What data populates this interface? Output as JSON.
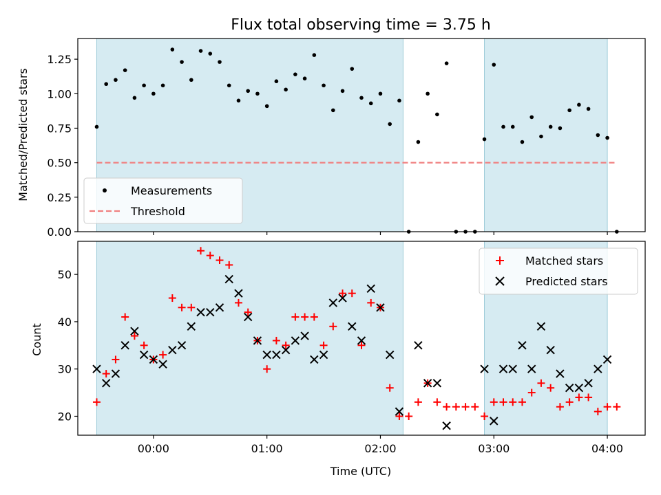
{
  "chart_data": [
    {
      "type": "scatter",
      "title": "Flux total observing time = 3.75 h",
      "xlabel": "",
      "ylabel": "Matched/Predicted stars",
      "ylim": [
        0,
        1.4
      ],
      "yticks": [
        "0.00",
        "0.25",
        "0.50",
        "0.75",
        "1.00",
        "1.25"
      ],
      "xlim": [
        "-00:40",
        "04:20"
      ],
      "shaded_intervals": [
        [
          "-00:30",
          "02:12"
        ],
        [
          "02:55",
          "04:00"
        ]
      ],
      "series": [
        {
          "name": "Measurements",
          "x": [
            "-00:30",
            "-00:25",
            "-00:20",
            "-00:15",
            "-00:10",
            "-00:05",
            "00:00",
            "00:05",
            "00:10",
            "00:15",
            "00:20",
            "00:25",
            "00:30",
            "00:35",
            "00:40",
            "00:45",
            "00:50",
            "00:55",
            "01:00",
            "01:05",
            "01:10",
            "01:15",
            "01:20",
            "01:25",
            "01:30",
            "01:35",
            "01:40",
            "01:45",
            "01:50",
            "01:55",
            "02:00",
            "02:05",
            "02:10",
            "02:15",
            "02:20",
            "02:25",
            "02:30",
            "02:35",
            "02:40",
            "02:45",
            "02:50",
            "02:55",
            "03:00",
            "03:05",
            "03:10",
            "03:15",
            "03:20",
            "03:25",
            "03:30",
            "03:35",
            "03:40",
            "03:45",
            "03:50",
            "03:55",
            "04:00",
            "04:05"
          ],
          "values": [
            0.76,
            1.07,
            1.1,
            1.17,
            0.97,
            1.06,
            1.0,
            1.06,
            1.32,
            1.23,
            1.1,
            1.31,
            1.29,
            1.23,
            1.06,
            0.95,
            1.02,
            1.0,
            0.91,
            1.09,
            1.03,
            1.14,
            1.11,
            1.28,
            1.06,
            0.88,
            1.02,
            1.18,
            0.97,
            0.93,
            1.0,
            0.78,
            0.95,
            0.0,
            0.65,
            1.0,
            0.85,
            1.22,
            0.0,
            0.0,
            0.0,
            0.67,
            1.21,
            0.76,
            0.76,
            0.65,
            0.83,
            0.69,
            0.76,
            0.75,
            0.88,
            0.92,
            0.89,
            0.7,
            0.68,
            0.0
          ]
        },
        {
          "name": "Threshold",
          "x": [
            "-00:30",
            "04:05"
          ],
          "values": [
            0.5,
            0.5
          ]
        }
      ],
      "legend": "lower-left",
      "colors": {
        "measurements": "#000000",
        "threshold": "#f08080",
        "shade": "#add8e6"
      }
    },
    {
      "type": "scatter",
      "xlabel": "Time (UTC)",
      "ylabel": "Count",
      "ylim": [
        16,
        57
      ],
      "yticks": [
        "20",
        "30",
        "40",
        "50"
      ],
      "xticks": [
        "00:00",
        "01:00",
        "02:00",
        "03:00",
        "04:00"
      ],
      "xlim": [
        "-00:40",
        "04:20"
      ],
      "shaded_intervals": [
        [
          "-00:30",
          "02:12"
        ],
        [
          "02:55",
          "04:00"
        ]
      ],
      "series": [
        {
          "name": "Matched stars",
          "x": [
            "-00:30",
            "-00:25",
            "-00:20",
            "-00:15",
            "-00:10",
            "-00:05",
            "00:00",
            "00:05",
            "00:10",
            "00:15",
            "00:20",
            "00:25",
            "00:30",
            "00:35",
            "00:40",
            "00:45",
            "00:50",
            "00:55",
            "01:00",
            "01:05",
            "01:10",
            "01:15",
            "01:20",
            "01:25",
            "01:30",
            "01:35",
            "01:40",
            "01:45",
            "01:50",
            "01:55",
            "02:00",
            "02:05",
            "02:10",
            "02:15",
            "02:20",
            "02:25",
            "02:30",
            "02:35",
            "02:40",
            "02:45",
            "02:50",
            "02:55",
            "03:00",
            "03:05",
            "03:10",
            "03:15",
            "03:20",
            "03:25",
            "03:30",
            "03:35",
            "03:40",
            "03:45",
            "03:50",
            "03:55",
            "04:00",
            "04:05"
          ],
          "values": [
            23,
            29,
            32,
            41,
            37,
            35,
            32,
            33,
            45,
            43,
            43,
            55,
            54,
            53,
            52,
            44,
            42,
            36,
            30,
            36,
            35,
            41,
            41,
            41,
            35,
            39,
            46,
            46,
            35,
            44,
            43,
            26,
            20,
            20,
            23,
            27,
            23,
            22,
            22,
            22,
            22,
            20,
            23,
            23,
            23,
            23,
            25,
            27,
            26,
            22,
            23,
            24,
            24,
            21,
            22,
            22
          ]
        },
        {
          "name": "Predicted stars",
          "x": [
            "-00:30",
            "-00:25",
            "-00:20",
            "-00:15",
            "-00:10",
            "-00:05",
            "00:00",
            "00:05",
            "00:10",
            "00:15",
            "00:20",
            "00:25",
            "00:30",
            "00:35",
            "00:40",
            "00:45",
            "00:50",
            "00:55",
            "01:00",
            "01:05",
            "01:10",
            "01:15",
            "01:20",
            "01:25",
            "01:30",
            "01:35",
            "01:40",
            "01:45",
            "01:50",
            "01:55",
            "02:00",
            "02:05",
            "02:10",
            "02:20",
            "02:25",
            "02:30",
            "02:35",
            "02:55",
            "03:00",
            "03:05",
            "03:10",
            "03:15",
            "03:20",
            "03:25",
            "03:30",
            "03:35",
            "03:40",
            "03:45",
            "03:50",
            "03:55",
            "04:00"
          ],
          "values": [
            30,
            27,
            29,
            35,
            38,
            33,
            32,
            31,
            34,
            35,
            39,
            42,
            42,
            43,
            49,
            46,
            41,
            36,
            33,
            33,
            34,
            36,
            37,
            32,
            33,
            44,
            45,
            39,
            36,
            47,
            43,
            33,
            21,
            35,
            27,
            27,
            18,
            30,
            19,
            30,
            30,
            35,
            30,
            39,
            34,
            29,
            26,
            26,
            27,
            30,
            32
          ]
        }
      ],
      "legend": "top-right",
      "colors": {
        "matched": "#ff0000",
        "predicted": "#000000",
        "shade": "#add8e6"
      }
    }
  ]
}
